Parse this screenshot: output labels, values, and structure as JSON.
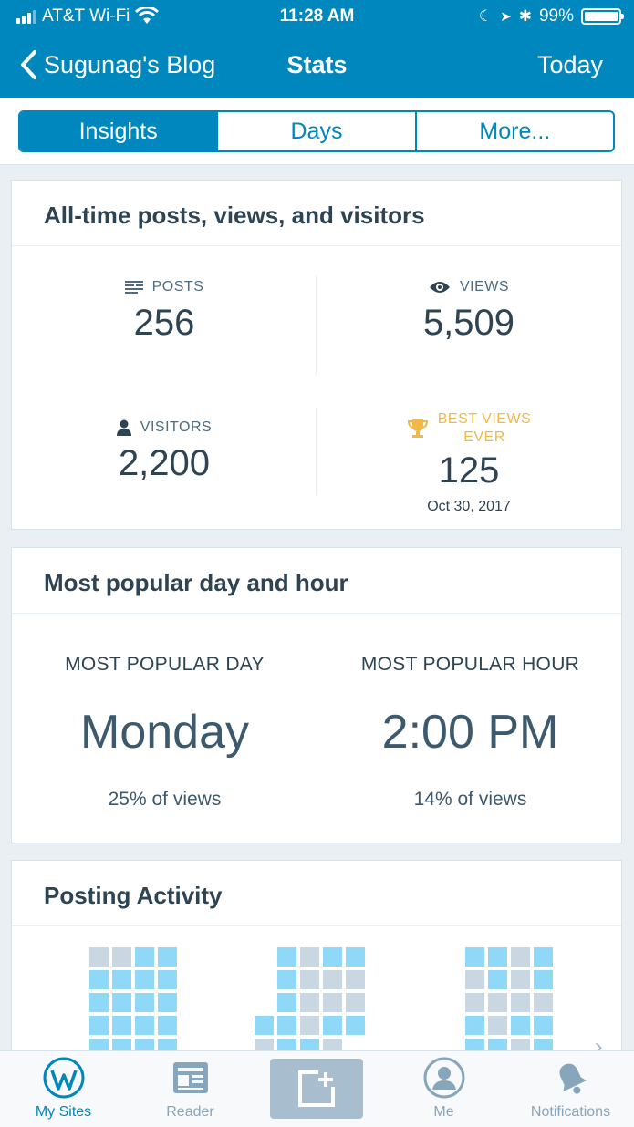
{
  "status_bar": {
    "carrier": "AT&T Wi-Fi",
    "time": "11:28 AM",
    "battery": "99%"
  },
  "nav": {
    "back_label": "Sugunag's Blog",
    "title": "Stats",
    "right": "Today"
  },
  "segments": [
    "Insights",
    "Days",
    "More..."
  ],
  "alltime": {
    "title": "All-time posts, views, and visitors",
    "posts_label": "POSTS",
    "posts_value": "256",
    "views_label": "VIEWS",
    "views_value": "5,509",
    "visitors_label": "VISITORS",
    "visitors_value": "2,200",
    "best_label_1": "BEST VIEWS",
    "best_label_2": "EVER",
    "best_value": "125",
    "best_date": "Oct 30, 2017"
  },
  "popular": {
    "title": "Most popular day and hour",
    "day_label": "MOST POPULAR DAY",
    "day_value": "Monday",
    "day_sub": "25% of views",
    "hour_label": "MOST POPULAR HOUR",
    "hour_value": "2:00 PM",
    "hour_sub": "14% of views"
  },
  "activity": {
    "title": "Posting Activity",
    "months": [
      {
        "cells": [
          "g",
          "g",
          "b",
          "b",
          "b",
          "b",
          "b",
          "b",
          "b",
          "b",
          "b",
          "b",
          "b",
          "b",
          "b",
          "b",
          "b",
          "b",
          "b",
          "b"
        ]
      },
      {
        "cells": [
          "n",
          "b",
          "g",
          "b",
          "b",
          "n",
          "b",
          "g",
          "g",
          "g",
          "n",
          "b",
          "g",
          "g",
          "g",
          "b",
          "b",
          "g",
          "b",
          "b",
          "g",
          "b",
          "b",
          "g",
          "n"
        ]
      },
      {
        "cells": [
          "b",
          "b",
          "g",
          "b",
          "g",
          "b",
          "g",
          "b",
          "g",
          "g",
          "g",
          "g",
          "b",
          "g",
          "b",
          "b",
          "b",
          "b",
          "g",
          "b"
        ]
      }
    ],
    "colors": {
      "active": "#8fd8f7",
      "inactive": "#c8d7e1"
    }
  },
  "tabs": [
    {
      "label": "My Sites",
      "icon": "wordpress-icon"
    },
    {
      "label": "Reader",
      "icon": "reader-icon"
    },
    {
      "label": "",
      "icon": "new-post-icon"
    },
    {
      "label": "Me",
      "icon": "me-icon"
    },
    {
      "label": "Notifications",
      "icon": "bell-icon"
    }
  ],
  "accent": "#0087be"
}
